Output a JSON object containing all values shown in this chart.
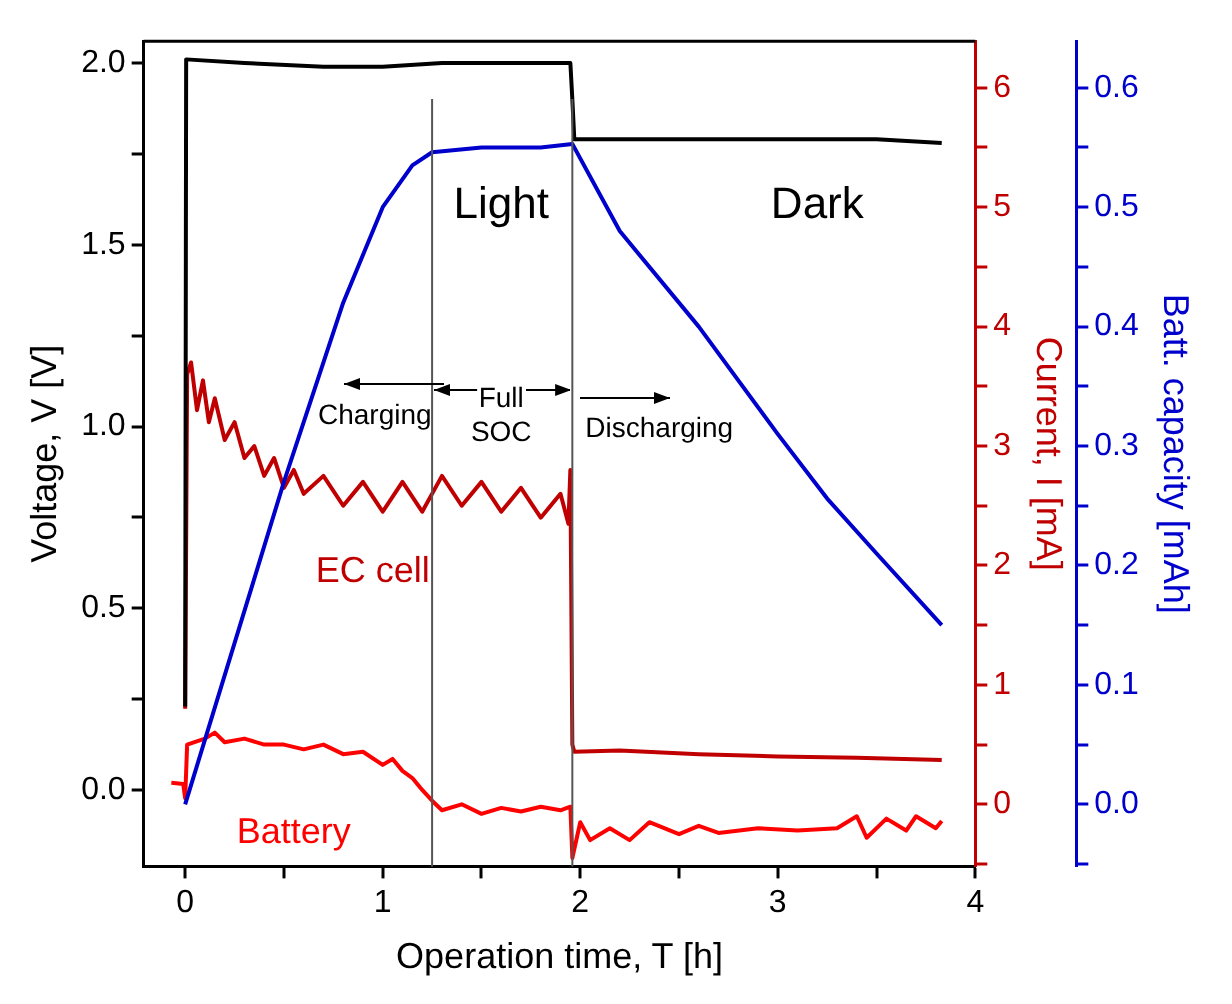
{
  "chart_data": {
    "type": "line",
    "xlabel": "Operation time, T [h]",
    "ylabel": "Voltage, V [V]",
    "y2label": "Current, I [mA]",
    "y3label": "Batt. capacity [mAh]",
    "xlim": [
      -0.21,
      4
    ],
    "xticks": [
      0,
      {
        "value": 0.5,
        "label": null
      },
      1,
      {
        "value": 1.5,
        "label": null
      },
      2,
      {
        "value": 2.5,
        "label": null
      },
      3,
      {
        "value": 3.5,
        "label": null
      },
      4
    ],
    "ylim": [
      -0.21,
      2.06
    ],
    "yticks": [
      {
        "value": 0,
        "label": "0.0"
      },
      {
        "value": 0.25,
        "label": null
      },
      {
        "value": 0.5,
        "label": "0.5"
      },
      {
        "value": 0.75,
        "label": null
      },
      {
        "value": 1,
        "label": "1.0"
      },
      {
        "value": 1.25,
        "label": null
      },
      {
        "value": 1.5,
        "label": "1.5"
      },
      {
        "value": 1.75,
        "label": null
      },
      {
        "value": 2,
        "label": "2.0"
      }
    ],
    "y2lim": [
      -0.52,
      6.39
    ],
    "y2ticks": [
      {
        "value": -0.5,
        "label": null
      },
      0,
      {
        "value": 0.5,
        "label": null
      },
      1,
      {
        "value": 1.5,
        "label": null
      },
      2,
      {
        "value": 2.5,
        "label": null
      },
      3,
      {
        "value": 3.5,
        "label": null
      },
      4,
      {
        "value": 4.5,
        "label": null
      },
      5,
      {
        "value": 5.5,
        "label": null
      },
      6
    ],
    "y3lim": [
      -0.052,
      0.639
    ],
    "y3ticks": [
      {
        "value": -0.05,
        "label": null
      },
      {
        "value": 0,
        "label": "0.0"
      },
      {
        "value": 0.05,
        "label": null
      },
      {
        "value": 0.1,
        "label": "0.1"
      },
      {
        "value": 0.15,
        "label": null
      },
      {
        "value": 0.2,
        "label": "0.2"
      },
      {
        "value": 0.25,
        "label": null
      },
      {
        "value": 0.3,
        "label": "0.3"
      },
      {
        "value": 0.35,
        "label": null
      },
      {
        "value": 0.4,
        "label": "0.4"
      },
      {
        "value": 0.45,
        "label": null
      },
      {
        "value": 0.5,
        "label": "0.5"
      },
      {
        "value": 0.55,
        "label": null
      },
      {
        "value": 0.6,
        "label": "0.6"
      }
    ],
    "grid": false,
    "legend": false,
    "marker": "none",
    "line_style": "solid",
    "ref_lines": [
      {
        "axis": "x",
        "value": 1.25,
        "color": "#555555"
      },
      {
        "axis": "x",
        "value": 1.96,
        "color": "#555555"
      }
    ],
    "annotations": [
      "Light",
      "Dark",
      "Charging",
      "Full\nSOC",
      "Discharging"
    ],
    "series": [
      {
        "color": "#000000",
        "x": [
          0,
          0.005,
          0.3,
          0.7,
          1.0,
          1.3,
          1.6,
          1.95,
          1.96,
          1.97,
          2.5,
          3.0,
          3.5,
          3.83
        ],
        "values": [
          0.23,
          2.01,
          2.0,
          1.99,
          1.99,
          2.0,
          2.0,
          2.0,
          1.9,
          1.79,
          1.79,
          1.79,
          1.79,
          1.78
        ]
      },
      {
        "color": "#0000cc",
        "axis": "y3",
        "x": [
          0,
          0.5,
          0.8,
          1.0,
          1.15,
          1.25,
          1.5,
          1.8,
          1.96,
          2.2,
          2.6,
          3.0,
          3.25,
          3.5,
          3.83
        ],
        "values": [
          0,
          0.27,
          0.42,
          0.5,
          0.535,
          0.546,
          0.55,
          0.55,
          0.553,
          0.48,
          0.4,
          0.31,
          0.256,
          0.21,
          0.15
        ]
      },
      {
        "name": "EC cell",
        "color": "#c00000",
        "axis": "y2",
        "x": [
          0,
          0.01,
          0.03,
          0.06,
          0.09,
          0.12,
          0.15,
          0.2,
          0.25,
          0.3,
          0.35,
          0.4,
          0.45,
          0.5,
          0.55,
          0.6,
          0.7,
          0.8,
          0.9,
          1.0,
          1.1,
          1.2,
          1.3,
          1.4,
          1.5,
          1.6,
          1.7,
          1.8,
          1.9,
          1.94,
          1.95,
          1.96,
          1.97,
          2.2,
          2.6,
          3.0,
          3.4,
          3.83
        ],
        "values": [
          0.8,
          3.6,
          3.7,
          3.3,
          3.55,
          3.2,
          3.4,
          3.05,
          3.2,
          2.9,
          3.0,
          2.75,
          2.9,
          2.65,
          2.8,
          2.6,
          2.75,
          2.5,
          2.7,
          2.45,
          2.7,
          2.45,
          2.75,
          2.5,
          2.7,
          2.45,
          2.65,
          2.4,
          2.6,
          2.35,
          2.8,
          0.5,
          0.44,
          0.45,
          0.42,
          0.4,
          0.39,
          0.37
        ]
      },
      {
        "name": "Battery",
        "color": "#ff0000",
        "axis": "y2",
        "x": [
          -0.07,
          -0.01,
          0,
          0.01,
          0.1,
          0.15,
          0.2,
          0.3,
          0.4,
          0.5,
          0.6,
          0.7,
          0.8,
          0.9,
          1.0,
          1.05,
          1.1,
          1.15,
          1.2,
          1.25,
          1.3,
          1.4,
          1.5,
          1.6,
          1.7,
          1.8,
          1.9,
          1.95,
          1.96,
          2.0,
          2.05,
          2.15,
          2.25,
          2.35,
          2.5,
          2.6,
          2.7,
          2.9,
          3.1,
          3.3,
          3.4,
          3.45,
          3.55,
          3.65,
          3.7,
          3.8,
          3.83
        ],
        "values": [
          0.18,
          0.17,
          0.05,
          0.5,
          0.55,
          0.6,
          0.52,
          0.55,
          0.5,
          0.5,
          0.46,
          0.5,
          0.42,
          0.44,
          0.33,
          0.38,
          0.28,
          0.22,
          0.12,
          0.03,
          -0.05,
          0,
          -0.08,
          -0.03,
          -0.06,
          -0.02,
          -0.05,
          -0.02,
          -0.45,
          -0.15,
          -0.3,
          -0.2,
          -0.3,
          -0.15,
          -0.25,
          -0.18,
          -0.24,
          -0.2,
          -0.22,
          -0.2,
          -0.1,
          -0.28,
          -0.12,
          -0.22,
          -0.1,
          -0.2,
          -0.14
        ]
      }
    ]
  }
}
